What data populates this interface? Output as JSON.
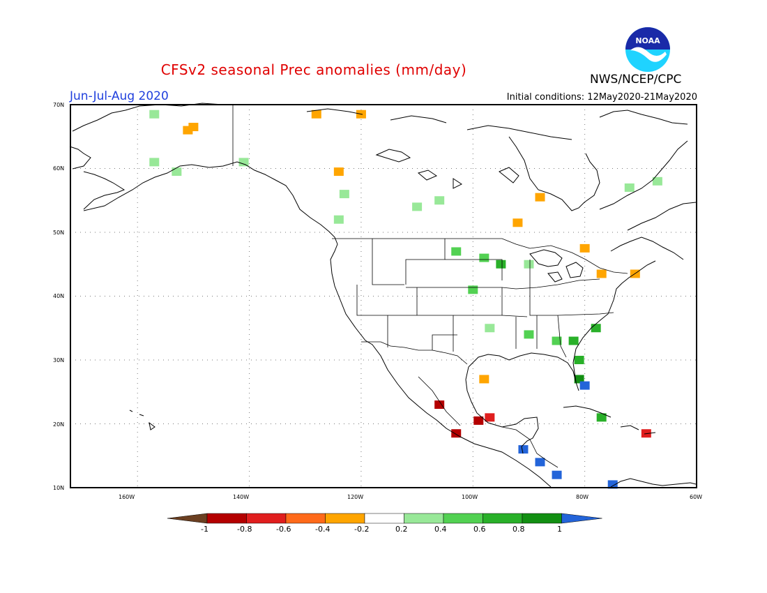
{
  "header": {
    "title": "CFSv2 seasonal Prec anomalies (mm/day)",
    "org": "NWS/NCEP/CPC",
    "season": "Jun-Jul-Aug 2020",
    "init": "Initial conditions: 12May2020-21May2020",
    "logo_text": "NOAA"
  },
  "map": {
    "lat_labels": [
      "70N",
      "60N",
      "50N",
      "40N",
      "30N",
      "20N",
      "10N"
    ],
    "lon_labels": [
      "160W",
      "140W",
      "120W",
      "100W",
      "80W",
      "60W"
    ],
    "lat_range": [
      10,
      70
    ],
    "lon_range": [
      -172,
      -60
    ],
    "grid": "dotted"
  },
  "legend": {
    "labels": [
      "-1",
      "-0.8",
      "-0.6",
      "-0.4",
      "-0.2",
      "0.2",
      "0.4",
      "0.6",
      "0.8",
      "1"
    ],
    "colors": [
      "#6b3f21",
      "#b40000",
      "#e01e1e",
      "#ff6a1a",
      "#ffa500",
      "#ffffff",
      "#98e898",
      "#52d152",
      "#29b029",
      "#128f12",
      "#2364d9"
    ]
  },
  "anomaly_cells": [
    {
      "lon": -157,
      "lat": 68.5,
      "cat": "p02"
    },
    {
      "lon": -151,
      "lat": 66,
      "cat": "n04"
    },
    {
      "lon": -150,
      "lat": 66.5,
      "cat": "n04"
    },
    {
      "lon": -128,
      "lat": 68.5,
      "cat": "n04"
    },
    {
      "lon": -120,
      "lat": 68.5,
      "cat": "n04"
    },
    {
      "lon": -124,
      "lat": 59.5,
      "cat": "n04"
    },
    {
      "lon": -141,
      "lat": 61,
      "cat": "p02"
    },
    {
      "lon": -157,
      "lat": 61,
      "cat": "p02"
    },
    {
      "lon": -153,
      "lat": 59.5,
      "cat": "p02"
    },
    {
      "lon": -123,
      "lat": 56,
      "cat": "p02"
    },
    {
      "lon": -124,
      "lat": 52,
      "cat": "p02"
    },
    {
      "lon": -110,
      "lat": 54,
      "cat": "p02"
    },
    {
      "lon": -106,
      "lat": 55,
      "cat": "p02"
    },
    {
      "lon": -88,
      "lat": 55.5,
      "cat": "n04"
    },
    {
      "lon": -92,
      "lat": 51.5,
      "cat": "n04"
    },
    {
      "lon": -80,
      "lat": 47.5,
      "cat": "n04"
    },
    {
      "lon": -77,
      "lat": 43.5,
      "cat": "n04"
    },
    {
      "lon": -71,
      "lat": 43.5,
      "cat": "n04"
    },
    {
      "lon": -67,
      "lat": 58,
      "cat": "p02"
    },
    {
      "lon": -72,
      "lat": 57,
      "cat": "p02"
    },
    {
      "lon": -103,
      "lat": 47,
      "cat": "p04"
    },
    {
      "lon": -98,
      "lat": 46,
      "cat": "p04"
    },
    {
      "lon": -95,
      "lat": 45,
      "cat": "p06"
    },
    {
      "lon": -100,
      "lat": 41,
      "cat": "p04"
    },
    {
      "lon": -90,
      "lat": 45,
      "cat": "p02"
    },
    {
      "lon": -97,
      "lat": 35,
      "cat": "p02"
    },
    {
      "lon": -90,
      "lat": 34,
      "cat": "p04"
    },
    {
      "lon": -85,
      "lat": 33,
      "cat": "p04"
    },
    {
      "lon": -82,
      "lat": 33,
      "cat": "p06"
    },
    {
      "lon": -78,
      "lat": 35,
      "cat": "p06"
    },
    {
      "lon": -81,
      "lat": 30,
      "cat": "p06"
    },
    {
      "lon": -81,
      "lat": 27,
      "cat": "p08"
    },
    {
      "lon": -80,
      "lat": 26,
      "cat": "p10"
    },
    {
      "lon": -98,
      "lat": 27,
      "cat": "n04"
    },
    {
      "lon": -97,
      "lat": 21,
      "cat": "n06"
    },
    {
      "lon": -99,
      "lat": 20.5,
      "cat": "n08"
    },
    {
      "lon": -103,
      "lat": 18.5,
      "cat": "n08"
    },
    {
      "lon": -106,
      "lat": 23,
      "cat": "n08"
    },
    {
      "lon": -91,
      "lat": 16,
      "cat": "p10"
    },
    {
      "lon": -88,
      "lat": 14,
      "cat": "p10"
    },
    {
      "lon": -85,
      "lat": 12,
      "cat": "p10"
    },
    {
      "lon": -75,
      "lat": 10.5,
      "cat": "p10"
    },
    {
      "lon": -77,
      "lat": 21,
      "cat": "p06"
    },
    {
      "lon": -69,
      "lat": 18.5,
      "cat": "n06"
    }
  ]
}
